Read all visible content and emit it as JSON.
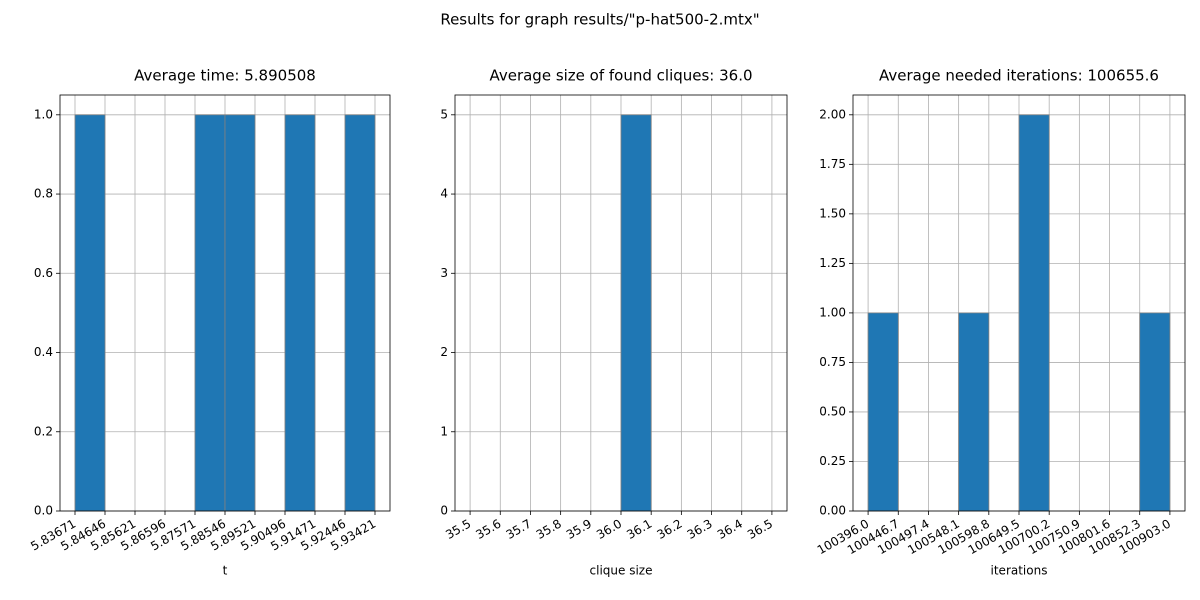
{
  "title": "Results for graph results/\"p-hat500-2.mtx\"",
  "chart_data": [
    {
      "type": "histogram",
      "title": "Average time: 5.890508",
      "x_label": "t",
      "color": "#1f77b4",
      "edge_color": "#808080",
      "grid": true,
      "bins": [
        5.83671,
        5.84646,
        5.85621,
        5.86596,
        5.87571,
        5.88546,
        5.89521,
        5.90496,
        5.91471,
        5.92446,
        5.93421
      ],
      "values": [
        1,
        0,
        0,
        0,
        1,
        1,
        0,
        1,
        0,
        1
      ],
      "xlim": [
        5.831835,
        5.939085
      ],
      "xticks": [
        5.83671,
        5.84646,
        5.85621,
        5.86596,
        5.87571,
        5.88546,
        5.89521,
        5.90496,
        5.91471,
        5.92446,
        5.93421
      ],
      "ylim": [
        0,
        1.05
      ],
      "yticks": [
        {
          "value": 0,
          "label": "0.0"
        },
        {
          "value": 0.2,
          "label": "0.2"
        },
        {
          "value": 0.4,
          "label": "0.4"
        },
        {
          "value": 0.6,
          "label": "0.6"
        },
        {
          "value": 0.8,
          "label": "0.8"
        },
        {
          "value": 1,
          "label": "1.0"
        }
      ]
    },
    {
      "type": "histogram",
      "title": "Average size of found cliques: 36.0",
      "x_label": "clique size",
      "color": "#1f77b4",
      "edge_color": "#808080",
      "grid": true,
      "bins": [
        35.5,
        35.6,
        35.7,
        35.8,
        35.9,
        36.0,
        36.1,
        36.2,
        36.3,
        36.4,
        36.5
      ],
      "values": [
        0,
        0,
        0,
        0,
        0,
        5,
        0,
        0,
        0,
        0
      ],
      "xlim": [
        35.45,
        36.55
      ],
      "xticks": [
        35.5,
        35.6,
        35.7,
        35.8,
        35.9,
        {
          "value": 36,
          "label": "36.0"
        },
        36.1,
        36.2,
        36.3,
        36.4,
        36.5
      ],
      "ylim": [
        0,
        5.25
      ],
      "yticks": [
        0,
        1,
        2,
        3,
        4,
        5
      ]
    },
    {
      "type": "histogram",
      "title": "Average needed iterations: 100655.6",
      "x_label": "iterations",
      "color": "#1f77b4",
      "edge_color": "#808080",
      "grid": true,
      "bins": [
        100396.0,
        100446.7,
        100497.4,
        100548.1,
        100598.8,
        100649.5,
        100700.2,
        100750.9,
        100801.6,
        100852.3,
        100903.0
      ],
      "values": [
        1,
        0,
        0,
        1,
        0,
        2,
        0,
        0,
        0,
        1
      ],
      "xlim": [
        100370.65,
        100928.35
      ],
      "xticks": [
        {
          "value": 100396,
          "label": "100396.0"
        },
        100446.7,
        100497.4,
        100548.1,
        100598.8,
        100649.5,
        100700.2,
        100750.9,
        100801.6,
        100852.3,
        {
          "value": 100903,
          "label": "100903.0"
        }
      ],
      "ylim": [
        0,
        2.1
      ],
      "yticks": [
        {
          "value": 0,
          "label": "0.00"
        },
        {
          "value": 0.25,
          "label": "0.25"
        },
        {
          "value": 0.5,
          "label": "0.50"
        },
        {
          "value": 0.75,
          "label": "0.75"
        },
        {
          "value": 1,
          "label": "1.00"
        },
        {
          "value": 1.25,
          "label": "1.25"
        },
        {
          "value": 1.5,
          "label": "1.50"
        },
        {
          "value": 1.75,
          "label": "1.75"
        },
        {
          "value": 2,
          "label": "2.00"
        }
      ]
    }
  ]
}
